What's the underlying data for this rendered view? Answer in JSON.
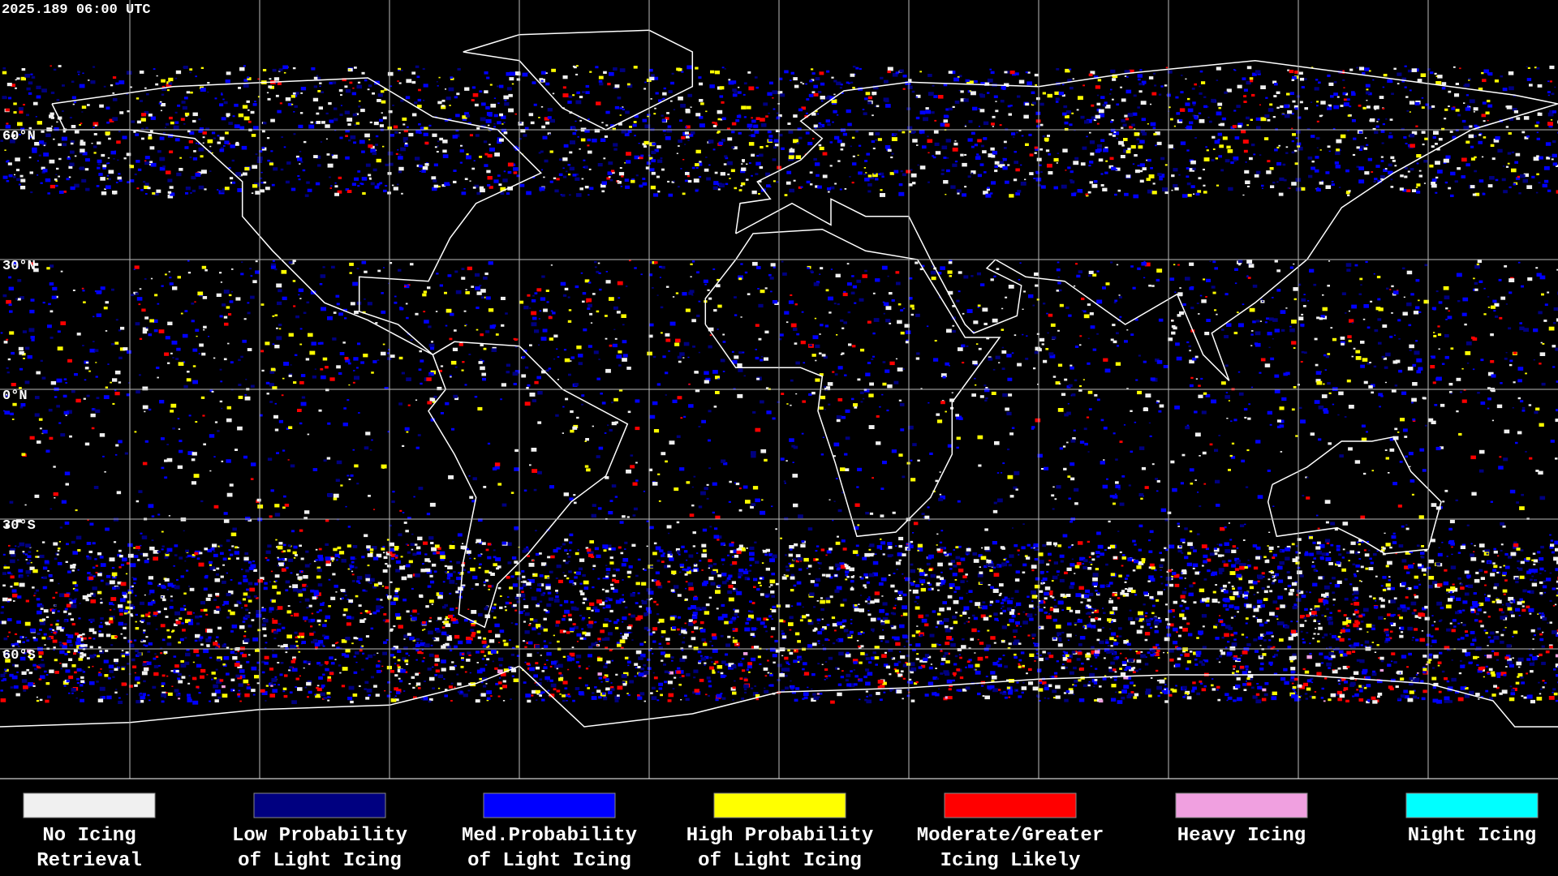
{
  "header": {
    "timestamp": "2025.189 06:00 UTC"
  },
  "map": {
    "latitude_labels": [
      "60°N",
      "30°N",
      "0°N",
      "30°S",
      "60°S"
    ]
  },
  "legend": {
    "items": [
      {
        "label_lines": [
          "No Icing",
          "Retrieval"
        ],
        "color": "#f0f0f0"
      },
      {
        "label_lines": [
          "Low Probability",
          "of Light Icing"
        ],
        "color": "#000080"
      },
      {
        "label_lines": [
          "Med.Probability",
          "of Light Icing"
        ],
        "color": "#0000ff"
      },
      {
        "label_lines": [
          "High Probability",
          "of Light Icing"
        ],
        "color": "#ffff00"
      },
      {
        "label_lines": [
          "Moderate/Greater",
          "Icing Likely"
        ],
        "color": "#ff0000"
      },
      {
        "label_lines": [
          "Heavy Icing"
        ],
        "color": "#f0a0e0"
      },
      {
        "label_lines": [
          "Night Icing"
        ],
        "color": "#00ffff"
      }
    ]
  }
}
